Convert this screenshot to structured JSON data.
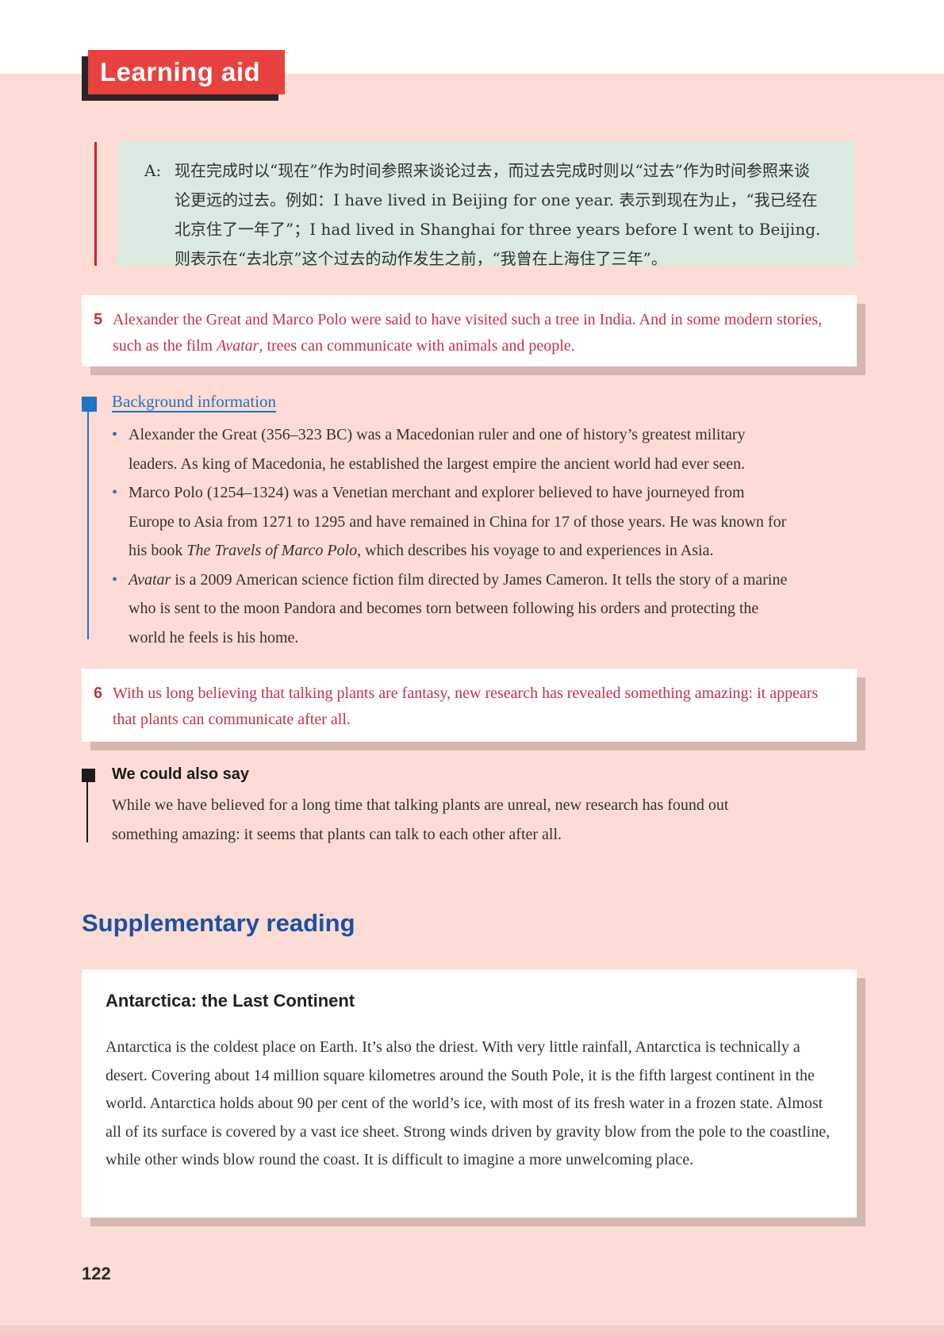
{
  "header": {
    "badge": "Learning aid"
  },
  "grammar_note": {
    "label": "A:",
    "text": "现在完成时以“现在”作为时间参照来谈论过去，而过去完成时则以“过去”作为时间参照来谈论更远的过去。例如：I have lived in Beijing for one year. 表示到现在为止，“我已经在北京住了一年了”；I had lived in Shanghai for three years before I went to Beijing. 则表示在“去北京”这个过去的动作发生之前，“我曾在上海住了三年”。"
  },
  "note5": {
    "number": "5",
    "segments": [
      {
        "t": "Alexander the Great and Marco Polo were said to have visited such a tree in India. And in some modern stories, such as the film "
      },
      {
        "t": "Avatar",
        "i": true
      },
      {
        "t": ", trees can communicate with animals and people."
      }
    ]
  },
  "background": {
    "title": "Background information",
    "bullet_glyph": "•",
    "bullets": [
      {
        "segments": [
          {
            "t": "Alexander the Great (356–323 BC) was a Macedonian ruler and one of history’s greatest military leaders. As king of Macedonia, he established the largest empire the ancient world had ever seen."
          }
        ]
      },
      {
        "segments": [
          {
            "t": "Marco Polo (1254–1324) was a Venetian merchant and explorer believed to have journeyed from Europe to Asia from 1271 to 1295 and have remained in China for 17 of those years. He was known for his book "
          },
          {
            "t": "The Travels of Marco Polo",
            "i": true
          },
          {
            "t": ", which describes his voyage to and experiences in Asia."
          }
        ]
      },
      {
        "segments": [
          {
            "t": "Avatar",
            "i": true
          },
          {
            "t": " is a 2009 American science fiction film directed by James Cameron. It tells the story of a marine who is sent to the moon Pandora and becomes torn between following his orders and protecting the world he feels is his home."
          }
        ]
      }
    ]
  },
  "note6": {
    "number": "6",
    "segments": [
      {
        "t": "With us long believing that talking plants are fantasy, new research has revealed something amazing: it appears that plants can communicate after all."
      }
    ]
  },
  "could_say": {
    "title": "We could also say",
    "text": "While we have believed for a long time that talking plants are unreal, new research has found out something amazing: it seems that plants can talk to each other after all."
  },
  "supplementary": {
    "title": "Supplementary reading",
    "article": {
      "title": "Antarctica: the Last Continent",
      "text": "Antarctica is the coldest place on Earth. It’s also the driest. With very little rainfall, Antarctica is technically a desert. Covering about 14 million square kilometres around the South Pole, it is the fifth largest continent in the world. Antarctica holds about 90 per cent of the world’s ice, with most of its fresh water in a frozen state. Almost all of its surface is covered by a vast ice sheet. Strong winds driven by gravity blow from the pole to the coastline, while other winds blow round the coast. It is difficult to imagine a more unwelcoming place."
    }
  },
  "page": {
    "number": "122"
  },
  "colors": {
    "page_background": "#fcdcd4",
    "top_margin_white": "#ffffff",
    "badge_red": "#e8413e",
    "badge_shadow_black": "#2a2426",
    "grammar_box_green": "#dbeadf",
    "grammar_rule_red": "#c3242c",
    "note_text_red": "#c23249",
    "accent_blue": "#2273c3",
    "heading_blue": "#1d51a1",
    "box_shadow_pink": "#d5b6b1"
  }
}
